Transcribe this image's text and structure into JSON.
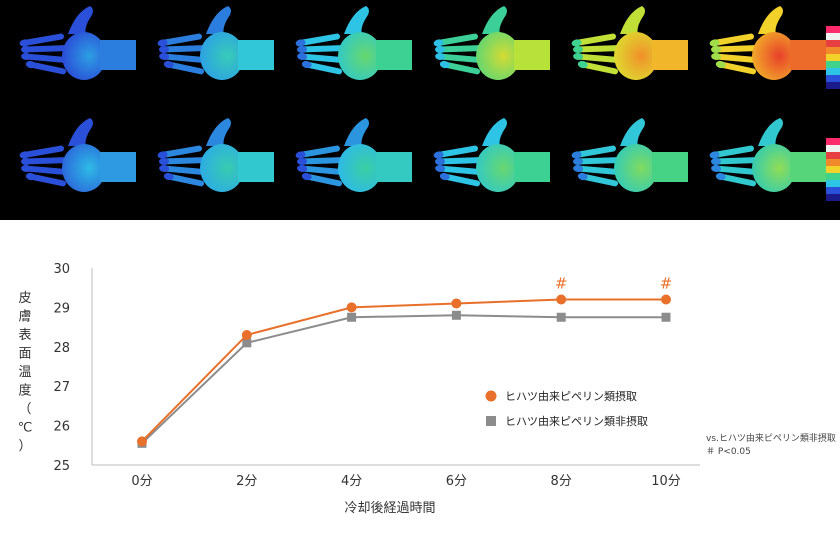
{
  "chart_data": {
    "type": "line",
    "categories": [
      "0分",
      "2分",
      "4分",
      "6分",
      "8分",
      "10分"
    ],
    "series": [
      {
        "name": "ヒハツ由来ピペリン類摂取",
        "color": "#e8702a",
        "marker": "circle",
        "values": [
          25.6,
          28.3,
          29.0,
          29.1,
          29.2,
          29.2
        ]
      },
      {
        "name": "ヒハツ由来ピペリン類非摂取",
        "color": "#8c8c8c",
        "marker": "square",
        "values": [
          25.55,
          28.1,
          28.75,
          28.8,
          28.75,
          28.75
        ]
      }
    ],
    "ylim": [
      25,
      30
    ],
    "yticks": [
      25,
      26,
      27,
      28,
      29,
      30
    ],
    "xlabel": "冷却後経過時間",
    "ylabel": "皮膚表面温度（℃）",
    "significance": {
      "marker": "#",
      "categories": [
        "8分",
        "10分"
      ]
    },
    "footnote": [
      "vs.ヒハツ由来ピペリン類非摂取",
      "＃ P<0.05"
    ],
    "legend_position": "right"
  },
  "thermal_panel": {
    "columns": 6,
    "rows": 2,
    "intensity_top": [
      0.12,
      0.3,
      0.45,
      0.62,
      0.82,
      0.95
    ],
    "intensity_bottom": [
      0.18,
      0.32,
      0.35,
      0.45,
      0.48,
      0.5
    ]
  }
}
